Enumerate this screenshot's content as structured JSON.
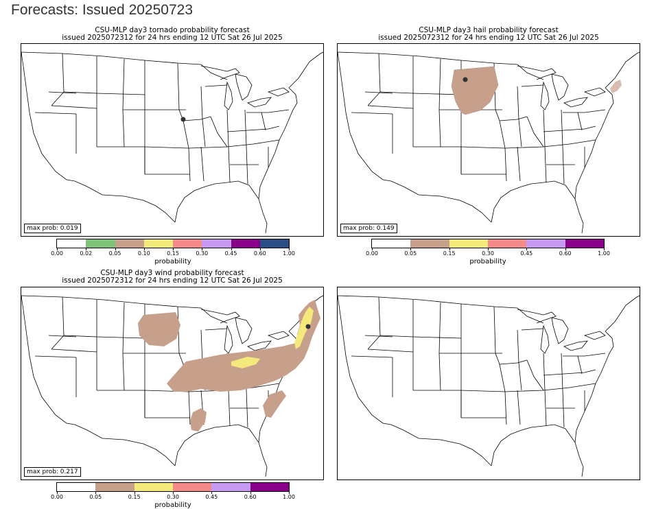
{
  "page": {
    "title": "Forecasts: Issued 20250723"
  },
  "panels": [
    {
      "id": "tornado",
      "title_line1": "CSU-MLP day3 tornado probability forecast",
      "title_line2": "issued 2025072312 for 24 hrs ending 12 UTC Sat 26 Jul 2025",
      "max_prob": "max prob: 0.019",
      "colorbar": {
        "label": "probability",
        "ticks": [
          "0.00",
          "0.02",
          "0.05",
          "0.10",
          "0.15",
          "0.30",
          "0.45",
          "0.60",
          "1.00"
        ],
        "colors": [
          "#ffffff",
          "#7fc27a",
          "#c7a08c",
          "#f4ea7c",
          "#f58a8a",
          "#c79af2",
          "#880088",
          "#2b4d86"
        ]
      }
    },
    {
      "id": "hail",
      "title_line1": "CSU-MLP day3 hail probability forecast",
      "title_line2": "issued 2025072312 for 24 hrs ending 12 UTC Sat 26 Jul 2025",
      "max_prob": "max prob: 0.149",
      "colorbar": {
        "label": "probability",
        "ticks": [
          "0.00",
          "0.05",
          "0.15",
          "0.30",
          "0.45",
          "0.60",
          "1.00"
        ],
        "colors": [
          "#ffffff",
          "#c7a08c",
          "#f4ea7c",
          "#f58a8a",
          "#c79af2",
          "#880088"
        ]
      }
    },
    {
      "id": "wind",
      "title_line1": "CSU-MLP day3 wind probability forecast",
      "title_line2": "issued 2025072312 for 24 hrs ending 12 UTC Sat 26 Jul 2025",
      "max_prob": "max prob: 0.217",
      "colorbar": {
        "label": "probability",
        "ticks": [
          "0.00",
          "0.05",
          "0.15",
          "0.30",
          "0.45",
          "0.60",
          "1.00"
        ],
        "colors": [
          "#ffffff",
          "#c7a08c",
          "#f4ea7c",
          "#f58a8a",
          "#c79af2",
          "#880088"
        ]
      }
    },
    {
      "id": "blank"
    }
  ],
  "legend_colors": {
    "prob_05": "#c7a08c",
    "prob_15": "#f4ea7c"
  }
}
